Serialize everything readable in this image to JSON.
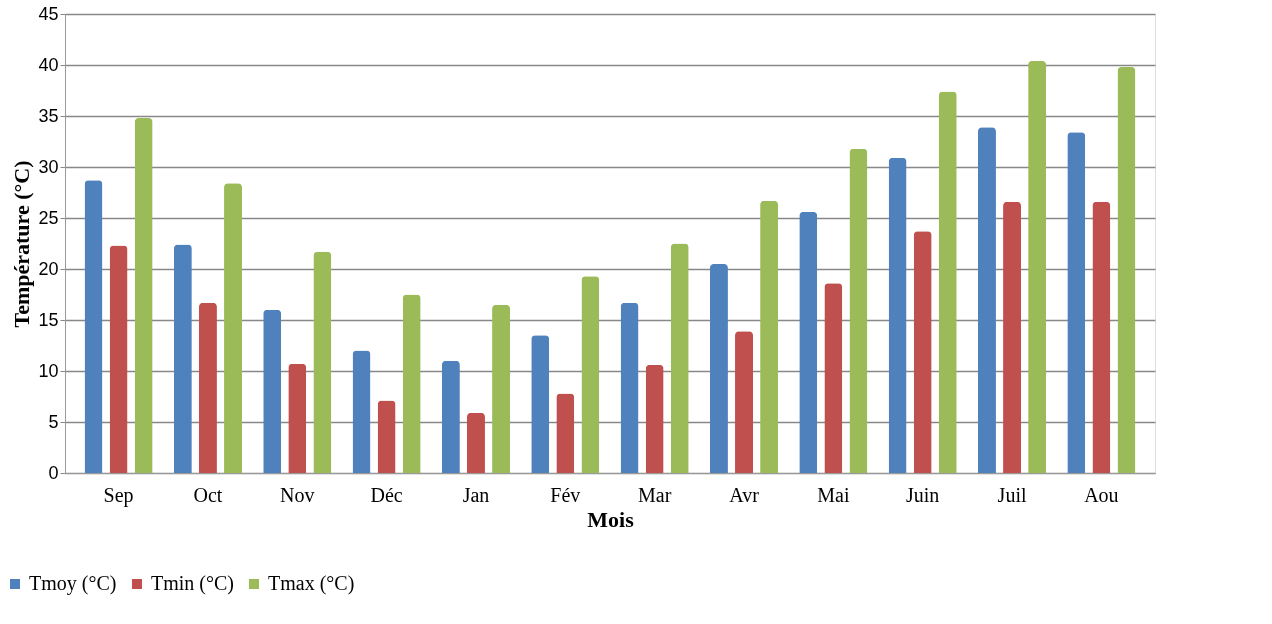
{
  "chart_data": {
    "type": "bar",
    "xlabel": "Mois",
    "ylabel": "Température (°C)",
    "categories": [
      "Sep",
      "Oct",
      "Nov",
      "Déc",
      "Jan",
      "Fév",
      "Mar",
      "Avr",
      "Mai",
      "Juin",
      "Juil",
      "Aou"
    ],
    "series": [
      {
        "name": "Tmoy (°C)",
        "color": "#4f81bd",
        "values": [
          28.7,
          22.4,
          16,
          12,
          11,
          13.5,
          16.7,
          20.5,
          25.6,
          30.9,
          33.9,
          33.4
        ]
      },
      {
        "name": "Tmin (°C)",
        "color": "#c0504d",
        "values": [
          22.3,
          16.7,
          10.7,
          7.1,
          5.9,
          7.8,
          10.6,
          13.9,
          18.6,
          23.7,
          26.6,
          26.6
        ]
      },
      {
        "name": "Tmax (°C)",
        "color": "#9bbb59",
        "values": [
          34.8,
          28.4,
          21.7,
          17.5,
          16.5,
          19.3,
          22.5,
          26.7,
          31.8,
          37.4,
          40.4,
          39.8
        ]
      }
    ],
    "ylim": [
      0,
      45
    ],
    "yticks": [
      0,
      5,
      10,
      15,
      20,
      25,
      30,
      35,
      40,
      45
    ],
    "grid": "y",
    "legend": "bottom left"
  }
}
